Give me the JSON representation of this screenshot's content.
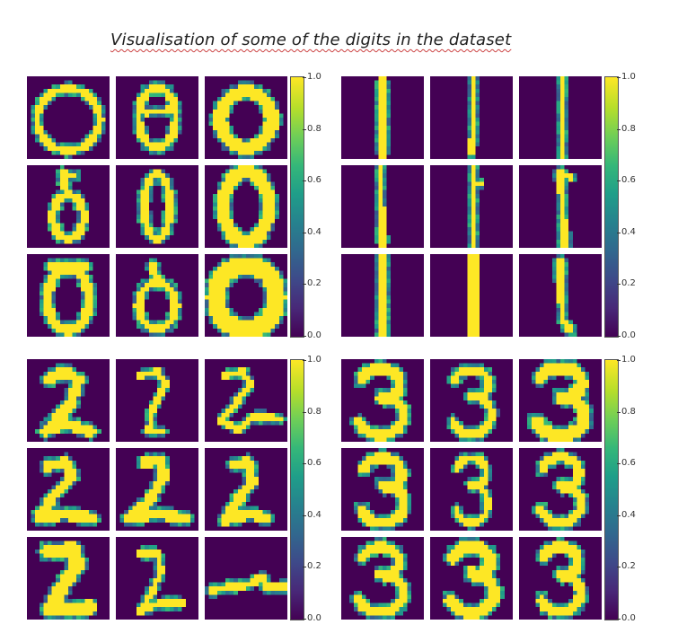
{
  "title": "Visualisation of some of the digits in the dataset",
  "chart_data": {
    "type": "heatmap",
    "colormap": "viridis",
    "panels": [
      {
        "digit": "0",
        "grid": "3x3",
        "colorbar": {
          "ticks": [
            "0.0",
            "0.2",
            "0.4",
            "0.6",
            "0.8",
            "1.0"
          ],
          "range": [
            0,
            1
          ]
        }
      },
      {
        "digit": "1",
        "grid": "3x3",
        "colorbar": {
          "ticks": [
            "0.0",
            "0.2",
            "0.4",
            "0.6",
            "0.8",
            "1.0"
          ],
          "range": [
            0,
            1
          ]
        }
      },
      {
        "digit": "2",
        "grid": "3x3",
        "colorbar": {
          "ticks": [
            "0.0",
            "0.2",
            "0.4",
            "0.6",
            "0.8",
            "1.0"
          ],
          "range": [
            0,
            1
          ]
        }
      },
      {
        "digit": "3",
        "grid": "3x3",
        "colorbar": {
          "ticks": [
            "0.0",
            "0.2",
            "0.4",
            "0.6",
            "0.8",
            "1.0"
          ],
          "range": [
            0,
            1
          ]
        }
      }
    ]
  }
}
